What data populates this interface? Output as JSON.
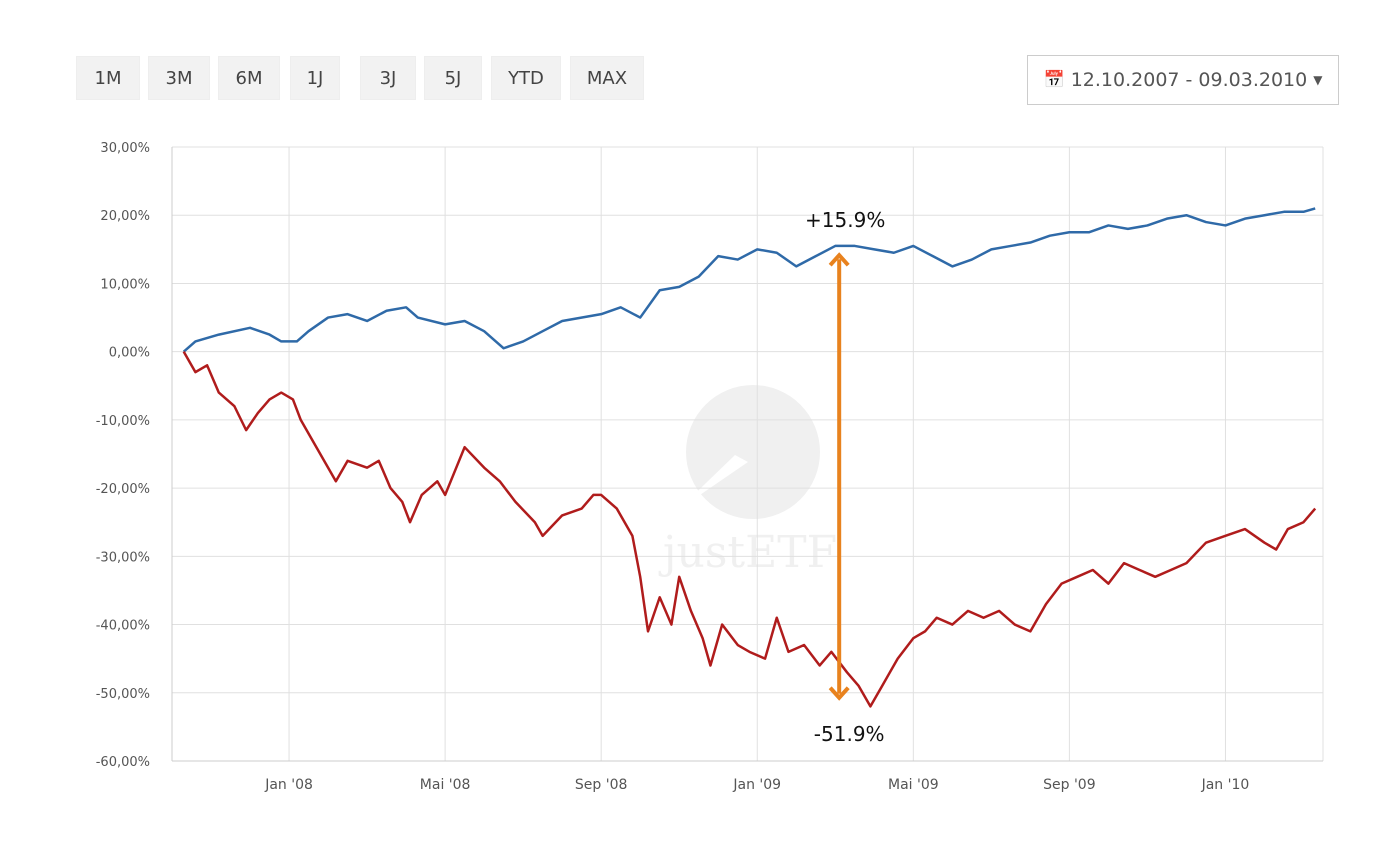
{
  "toolbar": {
    "ranges": [
      "1M",
      "3M",
      "6M",
      "1J",
      "3J",
      "5J",
      "YTD",
      "MAX"
    ],
    "date_range": "12.10.2007 - 09.03.2010",
    "calendar_icon": "calendar-icon",
    "dropdown_icon": "caret-down-icon"
  },
  "watermark": "justETF",
  "chart_data": {
    "type": "line",
    "title": "",
    "xlabel": "",
    "ylabel": "",
    "x_unit": "months since Oct 1 2007",
    "xlim": [
      0,
      29.5
    ],
    "ylim": [
      -60,
      30
    ],
    "y_ticks": [
      30,
      20,
      10,
      0,
      -10,
      -20,
      -30,
      -40,
      -50,
      -60
    ],
    "y_tick_labels": [
      "30,00%",
      "20,00%",
      "10,00%",
      "0,00%",
      "-10,00%",
      "-20,00%",
      "-30,00%",
      "-40,00%",
      "-50,00%",
      "-60,00%"
    ],
    "x_ticks": [
      3,
      7,
      11,
      15,
      19,
      23,
      27
    ],
    "x_tick_labels": [
      "Jan '08",
      "Mai '08",
      "Sep '08",
      "Jan '09",
      "Mai '09",
      "Sep '09",
      "Jan '10"
    ],
    "grid": true,
    "series": [
      {
        "name": "blue",
        "color": "#2f6aa8",
        "x": [
          0.3,
          0.6,
          1.2,
          2,
          2.5,
          2.8,
          3.2,
          3.5,
          4,
          4.5,
          5,
          5.5,
          6,
          6.3,
          7,
          7.5,
          8,
          8.5,
          9,
          9.5,
          10,
          11,
          11.5,
          12,
          12.5,
          13,
          13.5,
          14,
          14.5,
          15,
          15.5,
          16,
          16.5,
          17,
          17.5,
          18,
          18.5,
          19,
          19.5,
          20,
          20.5,
          21,
          21.5,
          22,
          22.5,
          23,
          23.5,
          24,
          24.5,
          25,
          25.5,
          26,
          26.5,
          27,
          27.5,
          28,
          28.5,
          29,
          29.3
        ],
        "y": [
          0,
          1.5,
          2.5,
          3.5,
          2.5,
          1.5,
          1.5,
          3,
          5,
          5.5,
          4.5,
          6,
          6.5,
          5,
          4,
          4.5,
          3,
          0.5,
          1.5,
          3,
          4.5,
          5.5,
          6.5,
          5,
          9,
          9.5,
          11,
          14,
          13.5,
          15,
          14.5,
          12.5,
          14,
          15.5,
          15.5,
          15,
          14.5,
          15.5,
          14,
          12.5,
          13.5,
          15,
          15.5,
          16,
          17,
          17.5,
          17.5,
          18.5,
          18,
          18.5,
          19.5,
          20,
          19,
          18.5,
          19.5,
          20,
          20.5,
          20.5,
          21
        ]
      },
      {
        "name": "red",
        "color": "#b01c1c",
        "x": [
          0.3,
          0.6,
          0.9,
          1.2,
          1.6,
          1.9,
          2.2,
          2.5,
          2.8,
          3.1,
          3.3,
          3.6,
          4,
          4.2,
          4.5,
          5,
          5.3,
          5.6,
          5.9,
          6.1,
          6.4,
          6.8,
          7,
          7.5,
          8,
          8.4,
          8.8,
          9.3,
          9.5,
          10,
          10.5,
          10.8,
          11,
          11.4,
          11.8,
          12,
          12.2,
          12.5,
          12.8,
          13,
          13.3,
          13.6,
          13.8,
          14.1,
          14.5,
          14.8,
          15.2,
          15.5,
          15.8,
          16.2,
          16.6,
          16.9,
          17.3,
          17.6,
          17.9,
          18.2,
          18.6,
          19,
          19.3,
          19.6,
          20,
          20.4,
          20.8,
          21.2,
          21.6,
          22,
          22.4,
          22.8,
          23.2,
          23.6,
          24,
          24.4,
          24.8,
          25.2,
          25.6,
          26,
          26.5,
          27,
          27.5,
          28,
          28.3,
          28.6,
          29,
          29.3
        ],
        "y": [
          0,
          -3,
          -2,
          -6,
          -8,
          -11.5,
          -9,
          -7,
          -6,
          -7,
          -10,
          -13,
          -17,
          -19,
          -16,
          -17,
          -16,
          -20,
          -22,
          -25,
          -21,
          -19,
          -21,
          -14,
          -17,
          -19,
          -22,
          -25,
          -27,
          -24,
          -23,
          -21,
          -21,
          -23,
          -27,
          -33,
          -41,
          -36,
          -40,
          -33,
          -38,
          -42,
          -46,
          -40,
          -43,
          -44,
          -45,
          -39,
          -44,
          -43,
          -46,
          -44,
          -47,
          -49,
          -52,
          -49,
          -45,
          -42,
          -41,
          -39,
          -40,
          -38,
          -39,
          -38,
          -40,
          -41,
          -37,
          -34,
          -33,
          -32,
          -34,
          -31,
          -32,
          -33,
          -32,
          -31,
          -28,
          -27,
          -26,
          -28,
          -29,
          -26,
          -25,
          -23
        ]
      }
    ],
    "annotations": [
      {
        "x": 17.1,
        "from": 15.9,
        "to": -51.9,
        "color": "#e8821e",
        "top_label": "+15.9%",
        "bottom_label": "-51.9%"
      }
    ]
  }
}
